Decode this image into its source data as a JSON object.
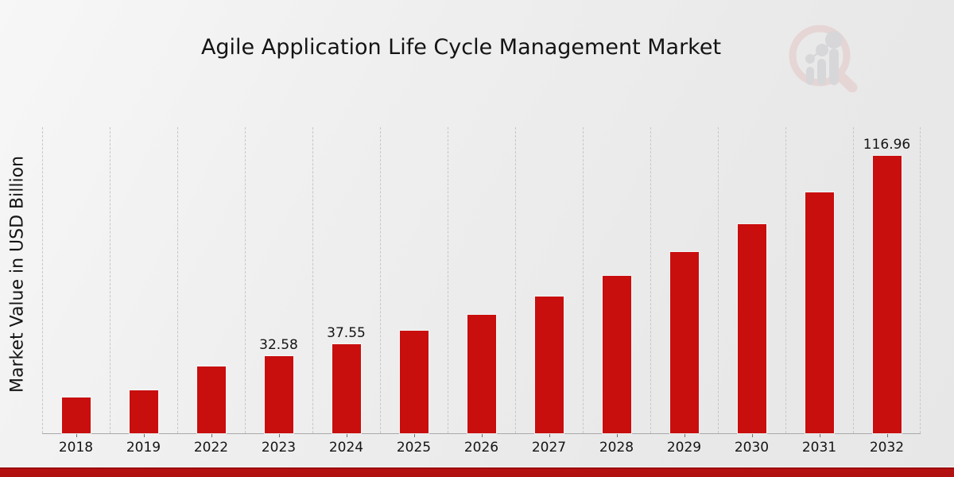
{
  "page": {
    "title": "Agile Application Life Cycle Management Market",
    "ylabel": "Market Value in USD Billion",
    "watermark_icon": "magnifier-bar-chart-logo"
  },
  "chart_data": {
    "type": "bar",
    "title": "Agile Application Life Cycle Management Market",
    "xlabel": "",
    "ylabel": "Market Value in USD Billion",
    "categories": [
      "2018",
      "2019",
      "2022",
      "2023",
      "2024",
      "2025",
      "2026",
      "2027",
      "2028",
      "2029",
      "2030",
      "2031",
      "2032"
    ],
    "values": [
      15.1,
      18.2,
      28.2,
      32.58,
      37.55,
      43.3,
      49.9,
      57.5,
      66.3,
      76.4,
      88.0,
      101.5,
      116.96
    ],
    "data_labels": [
      null,
      null,
      null,
      "32.58",
      "37.55",
      null,
      null,
      null,
      null,
      null,
      null,
      null,
      "116.96"
    ],
    "ylim": [
      0,
      129
    ],
    "grid": "vertical-dashed",
    "legend": "none",
    "bar_color": "#c90e0e"
  },
  "colors": {
    "bar": "#c90e0e",
    "footer_band": "#b01010",
    "gridline": "#c7c7c7",
    "axis": "#a9a9a9",
    "text": "#141414",
    "watermark_pink": "#e5c6c6",
    "watermark_gray": "#c9c9cd"
  }
}
